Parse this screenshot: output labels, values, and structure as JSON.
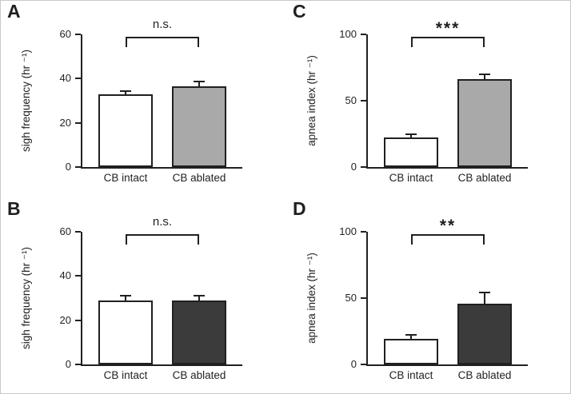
{
  "figure": {
    "background": "#ffffff",
    "ink": "#231f20",
    "gray_fill": "#a9a9a9",
    "dark_fill": "#3b3b3b"
  },
  "chart_data": [
    {
      "panel_label": "A",
      "type": "bar",
      "title": "",
      "ylabel": "sigh frequency (hr ⁻¹)",
      "xlabel": "",
      "ylim": [
        0,
        60
      ],
      "yticks": [
        0,
        20,
        40,
        60
      ],
      "categories": [
        "CB intact",
        "CB ablated"
      ],
      "values": [
        33,
        36.5
      ],
      "errors": [
        1.5,
        2
      ],
      "bar_colors": [
        "#ffffff",
        "#a9a9a9"
      ],
      "significance": "n.s.",
      "grid": false,
      "legend": "none"
    },
    {
      "panel_label": "B",
      "type": "bar",
      "title": "",
      "ylabel": "sigh frequency (hr ⁻¹)",
      "xlabel": "",
      "ylim": [
        0,
        60
      ],
      "yticks": [
        0,
        20,
        40,
        60
      ],
      "categories": [
        "CB intact",
        "CB ablated"
      ],
      "values": [
        29,
        29
      ],
      "errors": [
        2,
        2
      ],
      "bar_colors": [
        "#ffffff",
        "#3b3b3b"
      ],
      "significance": "n.s.",
      "grid": false,
      "legend": "none"
    },
    {
      "panel_label": "C",
      "type": "bar",
      "title": "",
      "ylabel": "apnea index (hr ⁻¹)",
      "xlabel": "",
      "ylim": [
        0,
        100
      ],
      "yticks": [
        0,
        50,
        100
      ],
      "categories": [
        "CB intact",
        "CB ablated"
      ],
      "values": [
        22,
        66
      ],
      "errors": [
        3,
        4
      ],
      "bar_colors": [
        "#ffffff",
        "#a9a9a9"
      ],
      "significance": "***",
      "grid": false,
      "legend": "none"
    },
    {
      "panel_label": "D",
      "type": "bar",
      "title": "",
      "ylabel": "apnea index (hr ⁻¹)",
      "xlabel": "",
      "ylim": [
        0,
        100
      ],
      "yticks": [
        0,
        50,
        100
      ],
      "categories": [
        "CB intact",
        "CB ablated"
      ],
      "values": [
        19,
        46
      ],
      "errors": [
        3.5,
        8
      ],
      "bar_colors": [
        "#ffffff",
        "#3b3b3b"
      ],
      "significance": "**",
      "grid": false,
      "legend": "none"
    }
  ]
}
